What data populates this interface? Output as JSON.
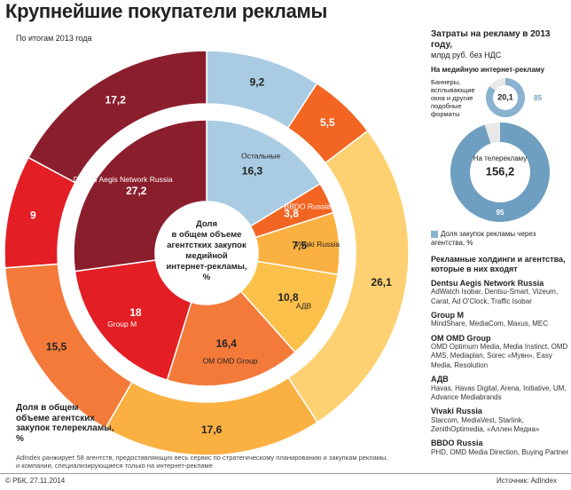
{
  "title": "Крупнейшие покупатели рекламы",
  "subtitle": "По итогам 2013 года",
  "center_label": [
    "Доля",
    "в общем объеме",
    "агентстких закупок",
    "медийной",
    "интернет-рекламы,",
    "%"
  ],
  "outer_label": [
    "Доля в общем",
    "объеме агентских",
    "закупок телерекламы,",
    "%"
  ],
  "chart_data": [
    {
      "type": "pie",
      "title": "Доля в общем объеме агентстких закупок медийной интернет-рекламы, %",
      "categories": [
        "Остальные",
        "BBDO Russia",
        "Vivaki Russia",
        "АДВ",
        "OM OMD Group",
        "Group M",
        "Dentsu Aegis Network Russia"
      ],
      "values": [
        16.3,
        3.8,
        7.5,
        10.8,
        16.4,
        18,
        27.2
      ],
      "labels": [
        "16,3",
        "3,8",
        "7,5",
        "10,8",
        "16,4",
        "18",
        "27,2"
      ],
      "colors": [
        "#a9cce3",
        "#f26522",
        "#fbb042",
        "#fcc14a",
        "#f47a3a",
        "#e31e24",
        "#8b1e2d"
      ]
    },
    {
      "type": "pie",
      "title": "Доля в общем объеме агентских закупок телерекламы, %",
      "categories": [
        "Остальные",
        "BBDO Russia",
        "Vivaki Russia",
        "АДВ",
        "OM OMD Group",
        "Group M",
        "Dentsu Aegis Network Russia"
      ],
      "values": [
        9.2,
        5.5,
        26.1,
        17.6,
        15.5,
        9,
        17.2
      ],
      "labels": [
        "9,2",
        "5,5",
        "26,1",
        "17,6",
        "15,5",
        "9",
        "17,2"
      ],
      "colors": [
        "#a9cce3",
        "#f26522",
        "#fdd171",
        "#fbb042",
        "#f47a3a",
        "#e31e24",
        "#8b1e2d"
      ]
    },
    {
      "type": "pie",
      "title": "Затраты на рекламу в 2013 году, млрд руб. без НДС — На медийную интернет-рекламу",
      "total": 20.1,
      "total_label": "20,1",
      "share_label": "85",
      "values": [
        85,
        15
      ],
      "colors": [
        "#8ab3cf",
        "#e8e8e8"
      ]
    },
    {
      "type": "pie",
      "title": "Затраты на рекламу в 2013 году, млрд руб. без НДС — На телерекламу",
      "total": 156.2,
      "total_label": "156,2",
      "share_label": "95",
      "values": [
        95,
        5
      ],
      "colors": [
        "#6f9fc0",
        "#e8e8e8"
      ]
    }
  ],
  "right": {
    "title": "Затраты на рекламу в 2013 году,",
    "unit": "млрд руб. без НДС",
    "internet_heading": "На медийную интернет-рекламу",
    "banner_note": "Баннеры, всплывающие окна и другие подобные форматы",
    "tv_heading": "На телерекламу",
    "legend": "Доля закупок рекламы через агентства, %",
    "groups_heading": "Рекламные холдинги и агентства, которые в них входят",
    "groups": [
      {
        "name": "Dentsu Aegis Network Russia",
        "list": "AdWatch Isobar, Dentsu-Smart, Vizeum, Carat, Ad O'Clock, Traffic Isobar"
      },
      {
        "name": "Group M",
        "list": "MindShare, MediaCom, Maxus, MEC"
      },
      {
        "name": "OM OMD Group",
        "list": "OMD Optimum Media, Media Instinct, OMD AMS, Mediaplan, Sorec «Мувн», Easy Media, Resolution"
      },
      {
        "name": "АДВ",
        "list": "Havas, Havas Digital, Arena, Initiative, UM, Advance Mediabrands"
      },
      {
        "name": "Vivaki Russia",
        "list": "Starcom, MediaVest, Starlink, ZenithOptimedia, «Аллен Медиа»"
      },
      {
        "name": "BBDO Russia",
        "list": "PHD, OMD Media Direction, Buying Partner"
      }
    ]
  },
  "footnote": "AdIndex ранжирует 58 агентств, предоставляющих весь сервис по стратегическому планированию и закупкам рекламы, и компании, специализирующиеся только на интернет-рекламе",
  "source_left": "© РБК, 27.11.2014",
  "source_right": "Источник: AdIndex"
}
